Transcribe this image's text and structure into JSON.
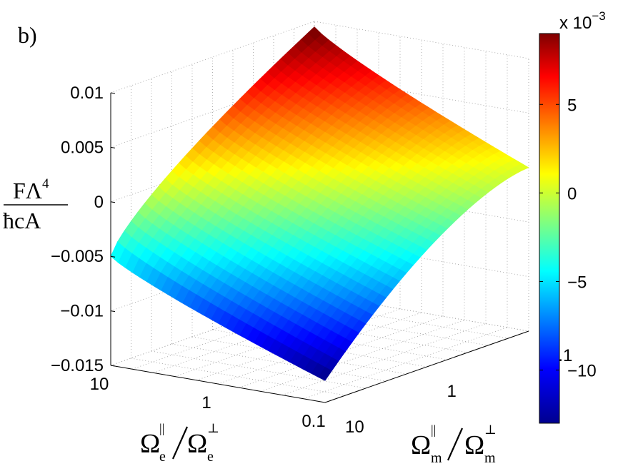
{
  "panel_label": "b)",
  "zlabel": {
    "numerator": "FΛ",
    "numerator_sup": "4",
    "denominator": "ħcA"
  },
  "xlabel": {
    "num": "Ω",
    "num_sup": "||",
    "num_sub": "e",
    "den": "Ω",
    "den_sup": "⊥",
    "den_sub": "e"
  },
  "ylabel": {
    "num": "Ω",
    "num_sup": "||",
    "num_sub": "m",
    "den": "Ω",
    "den_sup": "⊥",
    "den_sub": "m"
  },
  "colorbar": {
    "exponent_base": "x 10",
    "exponent": "−3",
    "ticks": [
      "5",
      "0",
      "−5",
      "−10"
    ],
    "tick_values": [
      5,
      0,
      -5,
      -10
    ],
    "range": [
      -13,
      9
    ],
    "colormap": "jet"
  },
  "chart_data": {
    "type": "surface",
    "title": "",
    "zlim": [
      -0.015,
      0.01
    ],
    "z_ticks": [
      "0.01",
      "0.005",
      "0",
      "−0.005",
      "−0.01",
      "−0.015"
    ],
    "z_tick_values": [
      0.01,
      0.005,
      0,
      -0.005,
      -0.01,
      -0.015
    ],
    "x_ticks": [
      "10",
      "1",
      "0.1"
    ],
    "x_tick_values": [
      10,
      1,
      0.1
    ],
    "y_ticks": [
      "10",
      "1",
      "0.1"
    ],
    "y_tick_values": [
      10,
      1,
      0.1
    ],
    "x_scale": "log",
    "y_scale": "log",
    "grid": true,
    "corner_values": [
      {
        "x": 10,
        "y": 10,
        "z": -0.005
      },
      {
        "x": 0.1,
        "y": 10,
        "z": -0.013
      },
      {
        "x": 10,
        "y": 0.1,
        "z": 0.0095
      },
      {
        "x": 0.1,
        "y": 0.1,
        "z": 0.0
      }
    ]
  }
}
